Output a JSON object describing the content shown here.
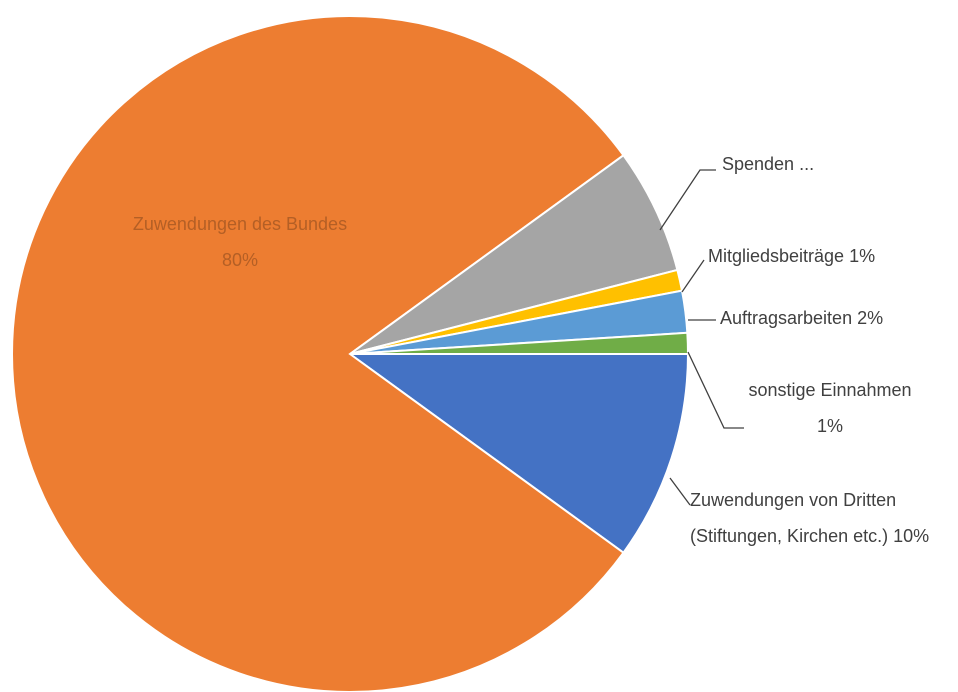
{
  "chart_data": {
    "type": "pie",
    "categories": [
      "Zuwendungen von Dritten (Stiftungen, Kirchen etc.) 10%",
      "Zuwendungen des Bundes 80%",
      "Spenden ...",
      "Mitgliedsbeiträge 1%",
      "Auftragsarbeiten 2%",
      "sonstige Einnahmen 1%"
    ],
    "values": [
      10,
      80,
      6,
      1,
      2,
      1
    ],
    "colors": [
      "#4472c4",
      "#ed7d31",
      "#a5a5a5",
      "#ffc000",
      "#5b9bd5",
      "#70ad47"
    ]
  }
}
